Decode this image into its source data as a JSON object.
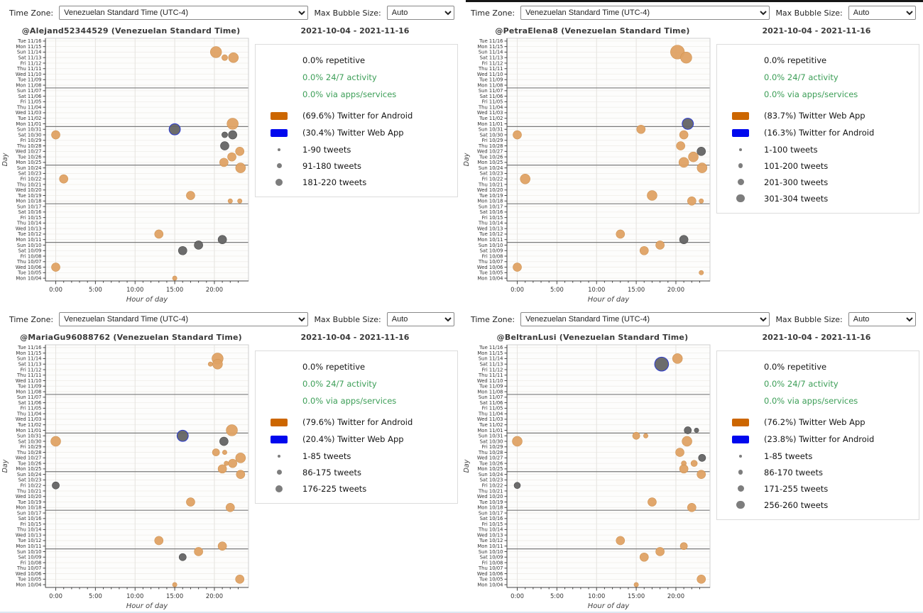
{
  "colors": {
    "accent_orange": "#CC6600",
    "accent_blue": "#0008EE",
    "bubble_orange": "#DFA264",
    "bubble_gray": "#646464",
    "green_text": "#3C9E57",
    "week_separator": "#7a7a7a",
    "grid_light": "#efede9",
    "grid_vertical": "#e5e3df"
  },
  "axis": {
    "days_top_to_bottom": [
      "Tue 11/16",
      "Mon 11/15",
      "Sun 11/14",
      "Sat 11/13",
      "Fri 11/12",
      "Thu 11/11",
      "Wed 11/10",
      "Tue 11/09",
      "Mon 11/08",
      "Sun 11/07",
      "Sat 11/06",
      "Fri 11/05",
      "Thu 11/04",
      "Wed 11/03",
      "Tue 11/02",
      "Mon 11/01",
      "Sun 10/31",
      "Sat 10/30",
      "Fri 10/29",
      "Thu 10/28",
      "Wed 10/27",
      "Tue 10/26",
      "Mon 10/25",
      "Sun 10/24",
      "Sat 10/23",
      "Fri 10/22",
      "Thu 10/21",
      "Wed 10/20",
      "Tue 10/19",
      "Mon 10/18",
      "Sun 10/17",
      "Sat 10/16",
      "Fri 10/15",
      "Thu 10/14",
      "Wed 10/13",
      "Tue 10/12",
      "Mon 10/11",
      "Sun 10/10",
      "Sat 10/09",
      "Fri 10/08",
      "Thu 10/07",
      "Wed 10/06",
      "Tue 10/05",
      "Mon 10/04"
    ],
    "hour_tick_labels": [
      "0:00",
      "5:00",
      "10:00",
      "15:00",
      "20:00"
    ],
    "hour_tick_values": [
      0,
      5,
      10,
      15,
      20
    ],
    "xlabel": "Hour of day",
    "ylabel": "Day",
    "week_separators_after": [
      "Mon 11/08",
      "Mon 11/01",
      "Mon 10/25",
      "Mon 10/18",
      "Mon 10/11"
    ]
  },
  "panels": [
    {
      "controls": {
        "time_zone_label": "Time Zone:",
        "time_zone_value": "Venezuelan Standard Time (UTC-4)",
        "bubble_label": "Max Bubble Size:",
        "bubble_value": "Auto"
      },
      "title": "@Alejand52344529 (Venezuelan Standard Time)",
      "date_range": "2021-10-04 - 2021-11-16",
      "legend": {
        "stats": [
          {
            "text": "0.0% repetitive",
            "color": "dark"
          },
          {
            "text": "0.0% 24/7 activity",
            "color": "green"
          },
          {
            "text": "0.0% via apps/services",
            "color": "green"
          }
        ],
        "sources": [
          {
            "swatch": "#CC6600",
            "label": "(69.6%) Twitter for Android"
          },
          {
            "swatch": "#0008EE",
            "label": "(30.4%) Twitter Web App"
          }
        ],
        "sizes": [
          {
            "r": 2,
            "label": "1-90 tweets"
          },
          {
            "r": 3.5,
            "label": "91-180 tweets"
          },
          {
            "r": 5,
            "label": "181-220 tweets"
          }
        ]
      },
      "chart_data": {
        "type": "scatter",
        "x_range": [
          -1.3,
          24.3
        ],
        "points": [
          {
            "day": "Sun 11/14",
            "hour": 20.2,
            "size": 3,
            "color": "orange"
          },
          {
            "day": "Sat 11/13",
            "hour": 21.3,
            "size": 1,
            "color": "orange"
          },
          {
            "day": "Sat 11/13",
            "hour": 22.4,
            "size": 2.5,
            "color": "orange"
          },
          {
            "day": "Mon 11/01",
            "hour": 22.3,
            "size": 3,
            "color": "orange"
          },
          {
            "day": "Sun 10/31",
            "hour": 15.0,
            "size": 3,
            "color": "gray",
            "edge": "blue"
          },
          {
            "day": "Sat 10/30",
            "hour": 0.0,
            "size": 2,
            "color": "orange"
          },
          {
            "day": "Sat 10/30",
            "hour": 21.3,
            "size": 1,
            "color": "gray"
          },
          {
            "day": "Sat 10/30",
            "hour": 22.3,
            "size": 2,
            "color": "gray"
          },
          {
            "day": "Thu 10/28",
            "hour": 21.3,
            "size": 2,
            "color": "gray"
          },
          {
            "day": "Wed 10/27",
            "hour": 23.2,
            "size": 2,
            "color": "orange"
          },
          {
            "day": "Tue 10/26",
            "hour": 22.2,
            "size": 2,
            "color": "orange"
          },
          {
            "day": "Mon 10/25",
            "hour": 21.2,
            "size": 2,
            "color": "orange"
          },
          {
            "day": "Sun 10/24",
            "hour": 23.3,
            "size": 2.5,
            "color": "orange"
          },
          {
            "day": "Fri 10/22",
            "hour": 1.0,
            "size": 2,
            "color": "orange"
          },
          {
            "day": "Tue 10/19",
            "hour": 17.0,
            "size": 2,
            "color": "orange"
          },
          {
            "day": "Mon 10/18",
            "hour": 22.0,
            "size": 0.5,
            "color": "orange"
          },
          {
            "day": "Mon 10/18",
            "hour": 23.2,
            "size": 0.5,
            "color": "orange"
          },
          {
            "day": "Tue 10/12",
            "hour": 13.0,
            "size": 2,
            "color": "orange"
          },
          {
            "day": "Mon 10/11",
            "hour": 21.0,
            "size": 2,
            "color": "gray"
          },
          {
            "day": "Sun 10/10",
            "hour": 18.0,
            "size": 2,
            "color": "gray"
          },
          {
            "day": "Sat 10/09",
            "hour": 16.0,
            "size": 2,
            "color": "gray"
          },
          {
            "day": "Wed 10/06",
            "hour": 0.0,
            "size": 2,
            "color": "orange"
          },
          {
            "day": "Mon 10/04",
            "hour": 15.0,
            "size": 0.5,
            "color": "orange"
          }
        ]
      }
    },
    {
      "controls": {
        "time_zone_label": "Time Zone:",
        "time_zone_value": "Venezuelan Standard Time (UTC-4)",
        "bubble_label": "Max Bubble Size:",
        "bubble_value": "Auto"
      },
      "title": "@PetraElena8 (Venezuelan Standard Time)",
      "date_range": "2021-10-04 - 2021-11-16",
      "legend": {
        "stats": [
          {
            "text": "0.0% repetitive",
            "color": "dark"
          },
          {
            "text": "0.0% 24/7 activity",
            "color": "green"
          },
          {
            "text": "0.0% via apps/services",
            "color": "green"
          }
        ],
        "sources": [
          {
            "swatch": "#CC6600",
            "label": "(83.7%) Twitter Web App"
          },
          {
            "swatch": "#0008EE",
            "label": "(16.3%) Twitter for Android"
          }
        ],
        "sizes": [
          {
            "r": 2,
            "label": "1-100 tweets"
          },
          {
            "r": 3.2,
            "label": "101-200 tweets"
          },
          {
            "r": 4.5,
            "label": "201-300 tweets"
          },
          {
            "r": 5.8,
            "label": "301-304 tweets"
          }
        ]
      },
      "chart_data": {
        "type": "scatter",
        "x_range": [
          -1.3,
          24.3
        ],
        "points": [
          {
            "day": "Sun 11/14",
            "hour": 20.2,
            "size": 4,
            "color": "orange"
          },
          {
            "day": "Sat 11/13",
            "hour": 21.3,
            "size": 3,
            "color": "orange"
          },
          {
            "day": "Mon 11/01",
            "hour": 21.5,
            "size": 3,
            "color": "gray",
            "edge": "blue"
          },
          {
            "day": "Sun 10/31",
            "hour": 15.6,
            "size": 2,
            "color": "orange"
          },
          {
            "day": "Sat 10/30",
            "hour": 0.0,
            "size": 2,
            "color": "orange"
          },
          {
            "day": "Sat 10/30",
            "hour": 21.0,
            "size": 2,
            "color": "orange"
          },
          {
            "day": "Thu 10/28",
            "hour": 20.6,
            "size": 2,
            "color": "orange"
          },
          {
            "day": "Wed 10/27",
            "hour": 23.2,
            "size": 2,
            "color": "gray"
          },
          {
            "day": "Tue 10/26",
            "hour": 22.2,
            "size": 2.5,
            "color": "orange"
          },
          {
            "day": "Mon 10/25",
            "hour": 21.0,
            "size": 2.5,
            "color": "orange"
          },
          {
            "day": "Sun 10/24",
            "hour": 23.3,
            "size": 2.5,
            "color": "orange"
          },
          {
            "day": "Fri 10/22",
            "hour": 1.0,
            "size": 2.5,
            "color": "orange"
          },
          {
            "day": "Tue 10/19",
            "hour": 17.0,
            "size": 2.5,
            "color": "orange"
          },
          {
            "day": "Mon 10/18",
            "hour": 22.0,
            "size": 2,
            "color": "orange"
          },
          {
            "day": "Mon 10/18",
            "hour": 23.2,
            "size": 0.5,
            "color": "orange"
          },
          {
            "day": "Tue 10/12",
            "hour": 13.0,
            "size": 2,
            "color": "orange"
          },
          {
            "day": "Mon 10/11",
            "hour": 21.0,
            "size": 2,
            "color": "gray"
          },
          {
            "day": "Sun 10/10",
            "hour": 18.0,
            "size": 2,
            "color": "orange"
          },
          {
            "day": "Sat 10/09",
            "hour": 16.0,
            "size": 2,
            "color": "orange"
          },
          {
            "day": "Wed 10/06",
            "hour": 0.0,
            "size": 2,
            "color": "orange"
          },
          {
            "day": "Tue 10/05",
            "hour": 23.2,
            "size": 0.5,
            "color": "orange"
          }
        ]
      }
    },
    {
      "controls": {
        "time_zone_label": "Time Zone:",
        "time_zone_value": "Venezuelan Standard Time (UTC-4)",
        "bubble_label": "Max Bubble Size:",
        "bubble_value": "Auto"
      },
      "title": "@MariaGu96088762 (Venezuelan Standard Time)",
      "date_range": "2021-10-04 - 2021-11-16",
      "legend": {
        "stats": [
          {
            "text": "0.0% repetitive",
            "color": "dark"
          },
          {
            "text": "0.0% 24/7 activity",
            "color": "green"
          },
          {
            "text": "0.0% via apps/services",
            "color": "green"
          }
        ],
        "sources": [
          {
            "swatch": "#CC6600",
            "label": "(79.6%) Twitter for Android"
          },
          {
            "swatch": "#0008EE",
            "label": "(20.4%) Twitter Web App"
          }
        ],
        "sizes": [
          {
            "r": 2,
            "label": "1-85 tweets"
          },
          {
            "r": 3.5,
            "label": "86-175 tweets"
          },
          {
            "r": 5,
            "label": "176-225 tweets"
          }
        ]
      },
      "chart_data": {
        "type": "scatter",
        "x_range": [
          -1.3,
          24.3
        ],
        "points": [
          {
            "day": "Sun 11/14",
            "hour": 20.4,
            "size": 3,
            "color": "orange"
          },
          {
            "day": "Sat 11/13",
            "hour": 20.4,
            "size": 2.5,
            "color": "orange"
          },
          {
            "day": "Sat 11/13",
            "hour": 19.5,
            "size": 0.5,
            "color": "orange"
          },
          {
            "day": "Mon 11/01",
            "hour": 22.2,
            "size": 3,
            "color": "orange"
          },
          {
            "day": "Sun 10/31",
            "hour": 16.0,
            "size": 3,
            "color": "gray",
            "edge": "blue"
          },
          {
            "day": "Sat 10/30",
            "hour": 0.0,
            "size": 2.5,
            "color": "orange"
          },
          {
            "day": "Sat 10/30",
            "hour": 21.2,
            "size": 2,
            "color": "gray"
          },
          {
            "day": "Thu 10/28",
            "hour": 20.2,
            "size": 1.5,
            "color": "orange"
          },
          {
            "day": "Thu 10/28",
            "hour": 21.3,
            "size": 0.5,
            "color": "orange"
          },
          {
            "day": "Wed 10/27",
            "hour": 23.3,
            "size": 2.5,
            "color": "orange"
          },
          {
            "day": "Tue 10/26",
            "hour": 21.5,
            "size": 0.5,
            "color": "orange"
          },
          {
            "day": "Tue 10/26",
            "hour": 22.3,
            "size": 2,
            "color": "orange"
          },
          {
            "day": "Mon 10/25",
            "hour": 21.0,
            "size": 2,
            "color": "orange"
          },
          {
            "day": "Sun 10/24",
            "hour": 23.3,
            "size": 2,
            "color": "orange"
          },
          {
            "day": "Fri 10/22",
            "hour": 0.0,
            "size": 1.5,
            "color": "gray"
          },
          {
            "day": "Tue 10/19",
            "hour": 17.0,
            "size": 2,
            "color": "orange"
          },
          {
            "day": "Mon 10/18",
            "hour": 22.0,
            "size": 2,
            "color": "orange"
          },
          {
            "day": "Tue 10/12",
            "hour": 13.0,
            "size": 2,
            "color": "orange"
          },
          {
            "day": "Mon 10/11",
            "hour": 21.0,
            "size": 2,
            "color": "orange"
          },
          {
            "day": "Sun 10/10",
            "hour": 18.0,
            "size": 2,
            "color": "orange"
          },
          {
            "day": "Sat 10/09",
            "hour": 16.0,
            "size": 1.5,
            "color": "gray"
          },
          {
            "day": "Tue 10/05",
            "hour": 23.2,
            "size": 2,
            "color": "orange"
          },
          {
            "day": "Mon 10/04",
            "hour": 15.0,
            "size": 0.5,
            "color": "orange"
          }
        ]
      }
    },
    {
      "controls": {
        "time_zone_label": "Time Zone:",
        "time_zone_value": "Venezuelan Standard Time (UTC-4)",
        "bubble_label": "Max Bubble Size:",
        "bubble_value": "Auto"
      },
      "title": "@BeltranLusi (Venezuelan Standard Time)",
      "date_range": "2021-10-04 - 2021-11-16",
      "legend": {
        "stats": [
          {
            "text": "0.0% repetitive",
            "color": "dark"
          },
          {
            "text": "0.0% 24/7 activity",
            "color": "green"
          },
          {
            "text": "0.0% via apps/services",
            "color": "green"
          }
        ],
        "sources": [
          {
            "swatch": "#CC6600",
            "label": "(76.2%) Twitter Web App"
          },
          {
            "swatch": "#0008EE",
            "label": "(23.8%) Twitter for Android"
          }
        ],
        "sizes": [
          {
            "r": 2,
            "label": "1-85 tweets"
          },
          {
            "r": 3.2,
            "label": "86-170 tweets"
          },
          {
            "r": 4.5,
            "label": "171-255 tweets"
          },
          {
            "r": 5.8,
            "label": "256-260 tweets"
          }
        ]
      },
      "chart_data": {
        "type": "scatter",
        "x_range": [
          -1.3,
          24.3
        ],
        "points": [
          {
            "day": "Sun 11/14",
            "hour": 20.2,
            "size": 2.5,
            "color": "orange"
          },
          {
            "day": "Sat 11/13",
            "hour": 18.2,
            "size": 4,
            "color": "gray",
            "edge": "blue"
          },
          {
            "day": "Mon 11/01",
            "hour": 21.5,
            "size": 1.5,
            "color": "gray"
          },
          {
            "day": "Mon 11/01",
            "hour": 22.6,
            "size": 0.5,
            "color": "gray"
          },
          {
            "day": "Sun 10/31",
            "hour": 15.0,
            "size": 1.5,
            "color": "orange"
          },
          {
            "day": "Sun 10/31",
            "hour": 16.2,
            "size": 0.5,
            "color": "orange"
          },
          {
            "day": "Sat 10/30",
            "hour": 0.0,
            "size": 2.5,
            "color": "orange"
          },
          {
            "day": "Sat 10/30",
            "hour": 21.4,
            "size": 2.5,
            "color": "orange"
          },
          {
            "day": "Thu 10/28",
            "hour": 20.5,
            "size": 2,
            "color": "orange"
          },
          {
            "day": "Wed 10/27",
            "hour": 23.3,
            "size": 1.5,
            "color": "gray"
          },
          {
            "day": "Tue 10/26",
            "hour": 21.0,
            "size": 0.7,
            "color": "orange"
          },
          {
            "day": "Tue 10/26",
            "hour": 22.3,
            "size": 1.2,
            "color": "orange"
          },
          {
            "day": "Mon 10/25",
            "hour": 21.0,
            "size": 2,
            "color": "orange"
          },
          {
            "day": "Sun 10/24",
            "hour": 23.2,
            "size": 2,
            "color": "orange"
          },
          {
            "day": "Fri 10/22",
            "hour": 0.0,
            "size": 1.2,
            "color": "gray"
          },
          {
            "day": "Tue 10/19",
            "hour": 17.0,
            "size": 2,
            "color": "orange"
          },
          {
            "day": "Mon 10/18",
            "hour": 22.0,
            "size": 2,
            "color": "orange"
          },
          {
            "day": "Tue 10/12",
            "hour": 13.0,
            "size": 2,
            "color": "orange"
          },
          {
            "day": "Mon 10/11",
            "hour": 21.0,
            "size": 1.5,
            "color": "orange"
          },
          {
            "day": "Sun 10/10",
            "hour": 18.0,
            "size": 2,
            "color": "orange"
          },
          {
            "day": "Sat 10/09",
            "hour": 16.0,
            "size": 2,
            "color": "orange"
          },
          {
            "day": "Tue 10/05",
            "hour": 23.2,
            "size": 2,
            "color": "orange"
          },
          {
            "day": "Mon 10/04",
            "hour": 15.0,
            "size": 0.5,
            "color": "orange"
          }
        ]
      }
    }
  ]
}
